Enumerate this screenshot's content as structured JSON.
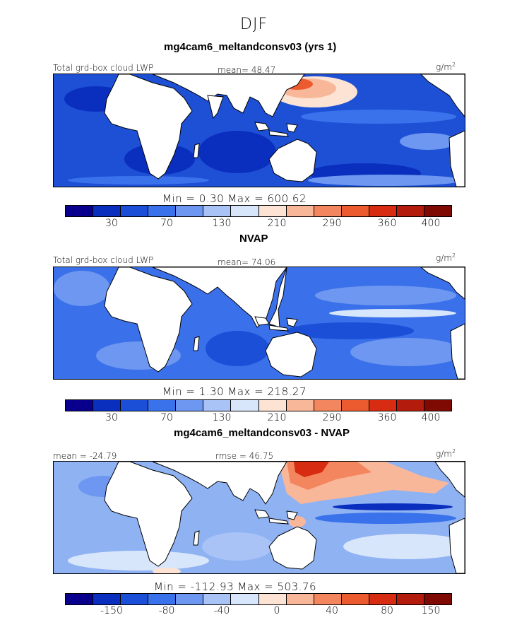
{
  "title": "DJF",
  "palette": [
    "#08008c",
    "#0a2fbf",
    "#1b4fd8",
    "#3a72ec",
    "#6d97f0",
    "#a9c3f6",
    "#d8e6fb",
    "#fde3d3",
    "#f9b79a",
    "#f3865e",
    "#ec5a30",
    "#d72c12",
    "#b31c0c",
    "#7f0a04"
  ],
  "land_color": "#ffffff",
  "panels": [
    {
      "case_title": "mg4cam6_meltandconsv03 (yrs 1)",
      "left_label": "Total grd-box cloud LWP",
      "mid_label": "mean=  48.47",
      "units": "g/m",
      "units_sup": "2",
      "minmax": "Min =    0.30  Max =  600.62",
      "ticks": [
        "30",
        "70",
        "130",
        "210",
        "290",
        "360",
        "400"
      ],
      "ocean_color": "#1e50d6"
    },
    {
      "case_title": "NVAP",
      "left_label": "Total grd-box cloud LWP",
      "mid_label": "mean=  74.06",
      "units": "g/m",
      "units_sup": "2",
      "minmax": "Min =    1.30  Max =  218.27",
      "ticks": [
        "30",
        "70",
        "130",
        "210",
        "290",
        "360",
        "400"
      ],
      "ocean_color": "#3a70ea"
    },
    {
      "case_title": "mg4cam6_meltandconsv03 - NVAP",
      "left_label": "mean = -24.79",
      "mid_label": "rmse =  46.75",
      "units": "g/m",
      "units_sup": "2",
      "minmax": "Min = -112.93  Max =  503.76",
      "ticks": [
        "-150",
        "-80",
        "-40",
        "0",
        "40",
        "80",
        "150"
      ],
      "ocean_color": "#8fb2f3"
    }
  ]
}
